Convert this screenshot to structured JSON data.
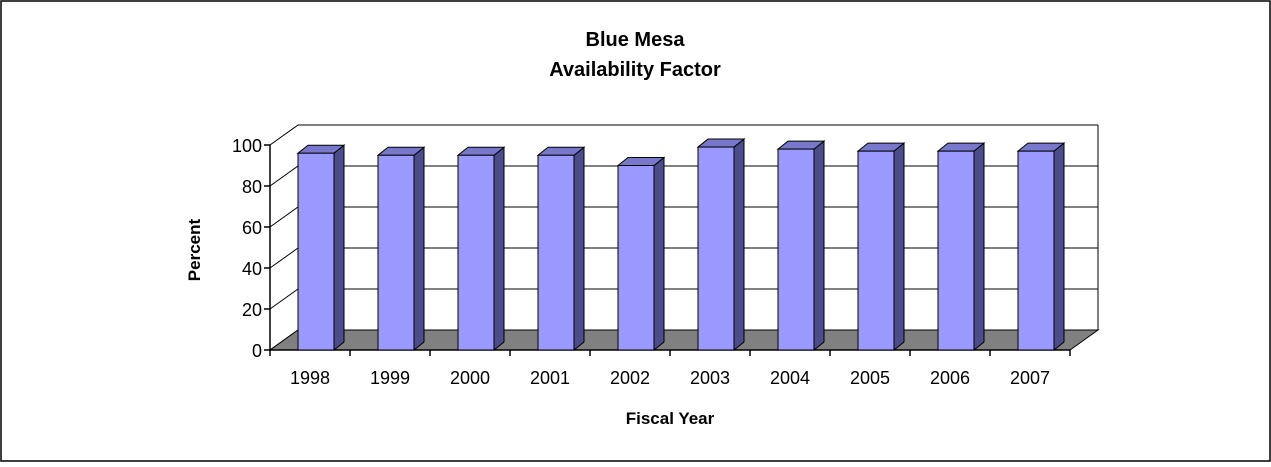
{
  "chart_data": {
    "type": "bar",
    "title": "Blue Mesa",
    "subtitle": "Availability Factor",
    "xlabel": "Fiscal Year",
    "ylabel": "Percent",
    "categories": [
      "1998",
      "1999",
      "2000",
      "2001",
      "2002",
      "2003",
      "2004",
      "2005",
      "2006",
      "2007"
    ],
    "values": [
      96,
      95,
      95,
      95,
      90,
      99,
      98,
      97,
      97,
      97
    ],
    "ylim": [
      0,
      100
    ],
    "yticks": [
      0,
      20,
      40,
      60,
      80,
      100
    ],
    "grid": true,
    "legend": "none",
    "three_d": true,
    "colors": {
      "bar_front": "#9999ff",
      "bar_side": "#4c4c8a",
      "bar_top": "#7777cc",
      "floor": "#808080",
      "gridline": "#000000"
    }
  }
}
